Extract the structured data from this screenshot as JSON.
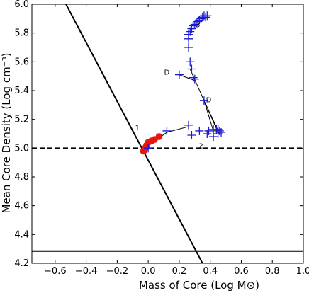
{
  "chart_data": {
    "type": "scatter",
    "xlabel": "Mass of Core (Log M⊙)",
    "ylabel": "Mean Core Density (Log cm⁻³)",
    "xlim": [
      -0.75,
      1.0
    ],
    "ylim": [
      4.2,
      6.0
    ],
    "xticks": [
      "−0.6",
      "−0.4",
      "−0.2",
      "0.0",
      "0.2",
      "0.4",
      "0.6",
      "0.8",
      "1.0"
    ],
    "xtick_values": [
      -0.6,
      -0.4,
      -0.2,
      0.0,
      0.2,
      0.4,
      0.6,
      0.8,
      1.0
    ],
    "yticks": [
      "4.2",
      "4.4",
      "4.6",
      "4.8",
      "5.0",
      "5.2",
      "5.4",
      "5.6",
      "5.8",
      "6.0"
    ],
    "ytick_values": [
      4.2,
      4.4,
      4.6,
      4.8,
      5.0,
      5.2,
      5.4,
      5.6,
      5.8,
      6.0
    ],
    "grid": false,
    "reference_lines": [
      {
        "kind": "line",
        "style": "solid",
        "color": "#000000",
        "points": [
          [
            -0.53,
            6.0
          ],
          [
            0.35,
            4.2
          ]
        ]
      },
      {
        "kind": "hline",
        "style": "dashed",
        "color": "#000000",
        "y": 5.0
      },
      {
        "kind": "hline",
        "style": "solid",
        "color": "#000000",
        "y": 4.285
      }
    ],
    "series": [
      {
        "marker": "circle",
        "color": "#e8160c",
        "points": [
          [
            -0.03,
            4.98
          ],
          [
            -0.02,
            5.0
          ],
          [
            -0.01,
            5.02
          ],
          [
            0.0,
            5.04
          ],
          [
            0.02,
            5.05
          ],
          [
            0.04,
            5.06
          ],
          [
            0.07,
            5.08
          ]
        ]
      },
      {
        "marker": "plus",
        "color": "#1a1ad6",
        "points": [
          [
            0.0,
            5.0
          ],
          [
            0.12,
            5.12
          ],
          [
            0.26,
            5.16
          ],
          [
            0.28,
            5.09
          ],
          [
            0.33,
            5.12
          ],
          [
            0.39,
            5.12
          ],
          [
            0.42,
            5.13
          ],
          [
            0.44,
            5.13
          ],
          [
            0.45,
            5.13
          ],
          [
            0.46,
            5.12
          ],
          [
            0.47,
            5.11
          ],
          [
            0.45,
            5.1
          ],
          [
            0.42,
            5.08
          ],
          [
            0.38,
            5.1
          ],
          [
            0.36,
            5.33
          ],
          [
            0.3,
            5.48
          ],
          [
            0.29,
            5.49
          ],
          [
            0.2,
            5.51
          ],
          [
            0.28,
            5.55
          ],
          [
            0.27,
            5.6
          ],
          [
            0.26,
            5.7
          ],
          [
            0.26,
            5.76
          ],
          [
            0.26,
            5.79
          ],
          [
            0.27,
            5.81
          ],
          [
            0.28,
            5.83
          ],
          [
            0.29,
            5.85
          ],
          [
            0.3,
            5.86
          ],
          [
            0.31,
            5.87
          ],
          [
            0.32,
            5.88
          ],
          [
            0.33,
            5.89
          ],
          [
            0.34,
            5.9
          ],
          [
            0.35,
            5.91
          ],
          [
            0.36,
            5.92
          ],
          [
            0.37,
            5.91
          ],
          [
            0.38,
            5.92
          ]
        ]
      }
    ],
    "connector_lines": [
      [
        [
          -0.02,
          5.0
        ],
        [
          0.12,
          5.11
        ],
        [
          0.26,
          5.15
        ]
      ],
      [
        [
          0.36,
          5.33
        ],
        [
          0.42,
          5.12
        ],
        [
          0.45,
          5.12
        ]
      ],
      [
        [
          0.36,
          5.33
        ],
        [
          0.45,
          5.11
        ]
      ],
      [
        [
          0.36,
          5.33
        ],
        [
          0.46,
          5.1
        ]
      ],
      [
        [
          0.2,
          5.51
        ],
        [
          0.3,
          5.47
        ]
      ],
      [
        [
          0.27,
          5.55
        ],
        [
          0.36,
          5.33
        ]
      ]
    ],
    "annotations": [
      {
        "text": "1",
        "x": -0.07,
        "y": 5.125
      },
      {
        "text": "2",
        "x": 0.34,
        "y": 5.0
      },
      {
        "text": "3",
        "x": 0.32,
        "y": 5.84
      },
      {
        "text": "D",
        "x": 0.12,
        "y": 5.51
      },
      {
        "text": "D",
        "x": 0.39,
        "y": 5.32
      }
    ]
  }
}
